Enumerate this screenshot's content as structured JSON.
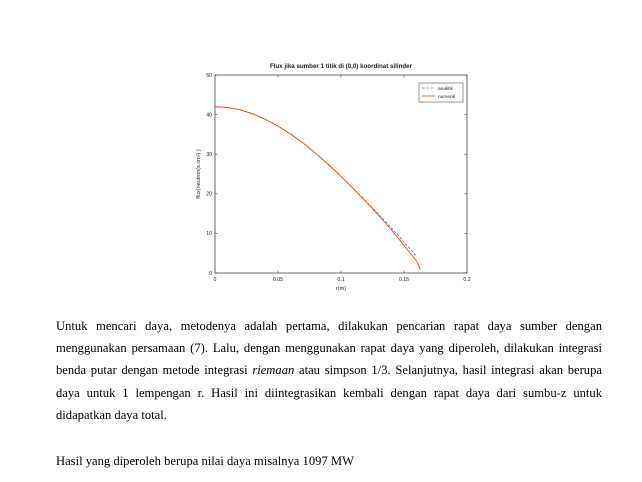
{
  "chart_data": {
    "type": "line",
    "title": "Flux jika sumber 1 titik di (0,0) koordinat silinder",
    "xlabel": "r(m)",
    "ylabel": "flux(neutron(s.cm²) )",
    "xlim": [
      0,
      0.2
    ],
    "ylim": [
      0,
      50
    ],
    "xticks": [
      "0",
      "0.05",
      "0.1",
      "0.15",
      "0.2"
    ],
    "yticks": [
      "0",
      "10",
      "20",
      "30",
      "40",
      "50"
    ],
    "grid": false,
    "legend_position": "top-right",
    "series": [
      {
        "name": "analitik",
        "color": "#4a86c5",
        "style": "dashed",
        "x": [
          0,
          0.01,
          0.02,
          0.03,
          0.04,
          0.05,
          0.06,
          0.07,
          0.08,
          0.09,
          0.1,
          0.11,
          0.12,
          0.13,
          0.14,
          0.15,
          0.16
        ],
        "y": [
          42.0,
          41.8,
          41.2,
          40.2,
          38.8,
          37.1,
          35.1,
          32.8,
          30.2,
          27.4,
          24.4,
          21.3,
          18.1,
          14.8,
          11.4,
          7.8,
          4.2
        ]
      },
      {
        "name": "numerik",
        "color": "#d9541e",
        "style": "solid",
        "x": [
          0,
          0.01,
          0.02,
          0.03,
          0.04,
          0.05,
          0.06,
          0.07,
          0.08,
          0.09,
          0.1,
          0.11,
          0.12,
          0.13,
          0.14,
          0.15,
          0.16,
          0.163
        ],
        "y": [
          42.0,
          41.8,
          41.2,
          40.2,
          38.8,
          37.1,
          35.1,
          32.8,
          30.2,
          27.4,
          24.4,
          21.2,
          17.9,
          14.5,
          10.9,
          7.0,
          3.0,
          0.9
        ]
      }
    ]
  },
  "text": {
    "para1_a": "Untuk mencari daya, metodenya adalah pertama, dilakukan pencarian rapat daya sumber dengan menggunakan persamaan (7). Lalu, dengan menggunakan rapat daya yang diperoleh, dilakukan integrasi benda putar dengan metode integrasi ",
    "para1_em": "riemaan",
    "para1_b": " atau simpson 1/3. Selanjutnya, hasil integrasi akan berupa daya untuk 1 lempengan r. Hasil ini diintegrasikan kembali dengan rapat daya dari sumbu-z untuk didapatkan daya total.",
    "para2": "Hasil yang diperoleh berupa nilai daya misalnya 1097 MW"
  }
}
